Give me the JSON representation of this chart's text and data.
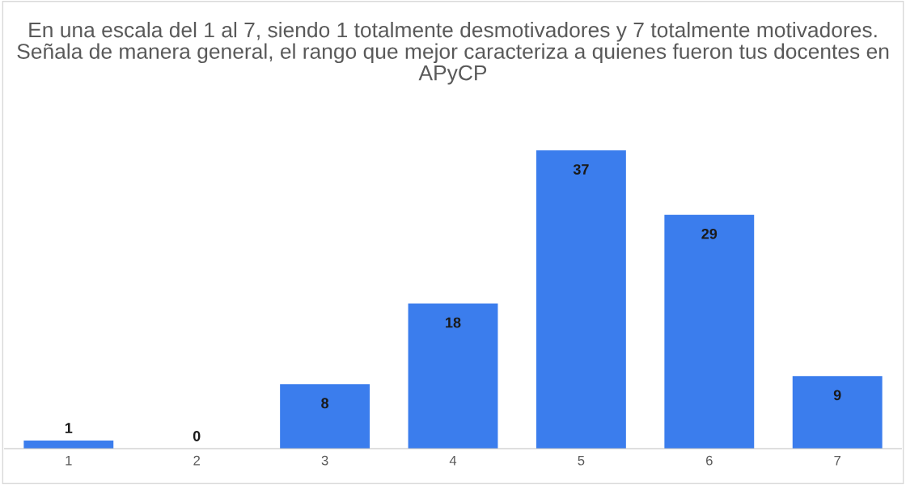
{
  "chart_data": {
    "type": "bar",
    "title": "En una escala del 1 al 7, siendo 1 totalmente desmotivadores y 7 totalmente motivadores. Señala de manera general, el rango que mejor caracteriza a quienes fueron tus docentes en APyCP",
    "categories": [
      "1",
      "2",
      "3",
      "4",
      "5",
      "6",
      "7"
    ],
    "values": [
      1,
      0,
      8,
      18,
      37,
      29,
      9
    ],
    "color": "#3b7ded",
    "data_labels": true,
    "grid": false,
    "legend": false
  }
}
